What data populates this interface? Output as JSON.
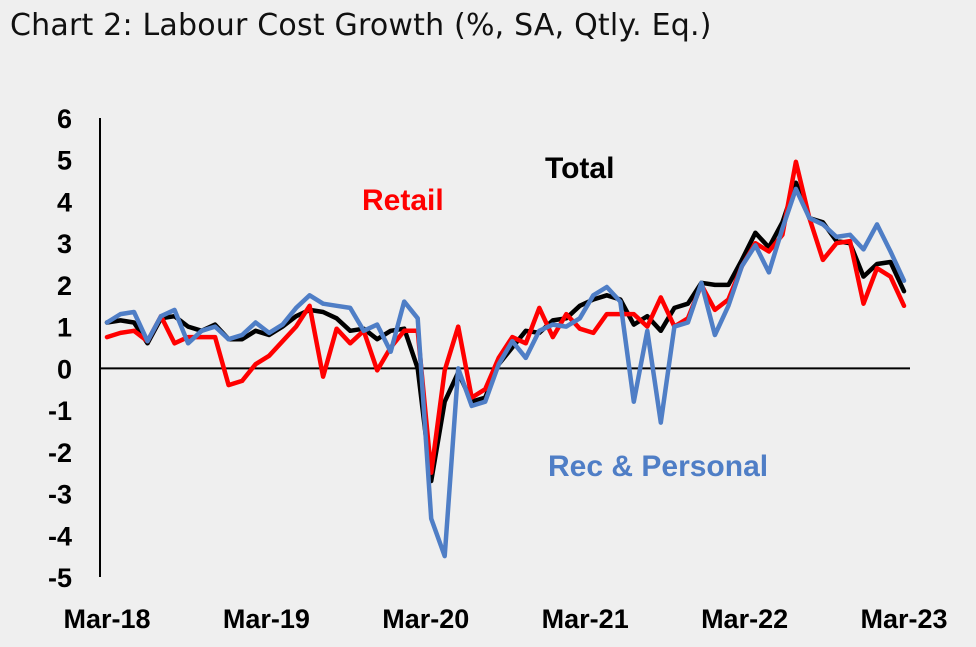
{
  "title": "Chart 2: Labour Cost Growth (%, SA, Qtly. Eq.)",
  "chart_data": {
    "type": "line",
    "title": "Chart 2: Labour Cost Growth (%, SA, Qtly. Eq.)",
    "x_tick_labels": [
      "Mar-18",
      "Mar-19",
      "Mar-20",
      "Mar-21",
      "Mar-22",
      "Mar-23"
    ],
    "x_start": "Mar-18",
    "x_end": "Mar-23",
    "ylim": [
      -5,
      6
    ],
    "y_ticks": [
      6,
      5,
      4,
      3,
      2,
      1,
      0,
      -1,
      -2,
      -3,
      -4,
      -5
    ],
    "grid": false,
    "legend": "none",
    "annotations": [
      {
        "text": "Total",
        "color": "#000000"
      },
      {
        "text": "Retail",
        "color": "#ff0000"
      },
      {
        "text": "Rec & Personal",
        "color": "#4f7ec6"
      }
    ],
    "series": [
      {
        "name": "Total",
        "color": "#000000",
        "values": [
          1.1,
          1.15,
          1.1,
          0.6,
          1.2,
          1.25,
          1.0,
          0.9,
          1.05,
          0.7,
          0.7,
          0.9,
          0.8,
          1.0,
          1.25,
          1.4,
          1.35,
          1.2,
          0.9,
          0.95,
          0.7,
          0.9,
          0.95,
          0.0,
          -2.7,
          -0.8,
          -0.1,
          -0.8,
          -0.7,
          0.1,
          0.5,
          0.9,
          0.85,
          1.15,
          1.2,
          1.5,
          1.65,
          1.75,
          1.65,
          1.05,
          1.25,
          0.9,
          1.45,
          1.55,
          2.05,
          2.0,
          2.0,
          2.6,
          3.25,
          2.9,
          3.5,
          4.45,
          3.6,
          3.5,
          3.05,
          3.0,
          2.2,
          2.5,
          2.55,
          1.85
        ]
      },
      {
        "name": "Retail",
        "color": "#ff0000",
        "values": [
          0.75,
          0.85,
          0.9,
          0.65,
          1.25,
          0.6,
          0.75,
          0.75,
          0.75,
          -0.4,
          -0.3,
          0.1,
          0.3,
          0.65,
          1.0,
          1.5,
          -0.2,
          0.95,
          0.6,
          0.9,
          -0.05,
          0.5,
          0.9,
          0.9,
          -2.5,
          -0.05,
          1.0,
          -0.7,
          -0.5,
          0.25,
          0.75,
          0.6,
          1.45,
          0.75,
          1.3,
          0.95,
          0.85,
          1.3,
          1.3,
          1.3,
          1.0,
          1.7,
          1.0,
          1.2,
          2.0,
          1.4,
          1.65,
          2.45,
          3.0,
          2.8,
          3.2,
          4.95,
          3.6,
          2.6,
          3.0,
          3.05,
          1.55,
          2.4,
          2.2,
          1.5
        ]
      },
      {
        "name": "Rec & Personal",
        "color": "#4f7ec6",
        "values": [
          1.1,
          1.3,
          1.35,
          0.65,
          1.25,
          1.4,
          0.6,
          0.9,
          1.0,
          0.7,
          0.8,
          1.1,
          0.85,
          1.05,
          1.45,
          1.75,
          1.55,
          1.5,
          1.45,
          0.9,
          1.05,
          0.4,
          1.6,
          1.2,
          -3.6,
          -4.5,
          0.0,
          -0.9,
          -0.8,
          0.1,
          0.65,
          0.25,
          0.9,
          1.05,
          1.0,
          1.2,
          1.75,
          1.95,
          1.6,
          -0.8,
          0.9,
          -1.3,
          1.0,
          1.1,
          2.05,
          0.8,
          1.5,
          2.45,
          2.95,
          2.3,
          3.35,
          4.3,
          3.6,
          3.45,
          3.15,
          3.2,
          2.85,
          3.45,
          2.8,
          2.1
        ]
      }
    ]
  }
}
